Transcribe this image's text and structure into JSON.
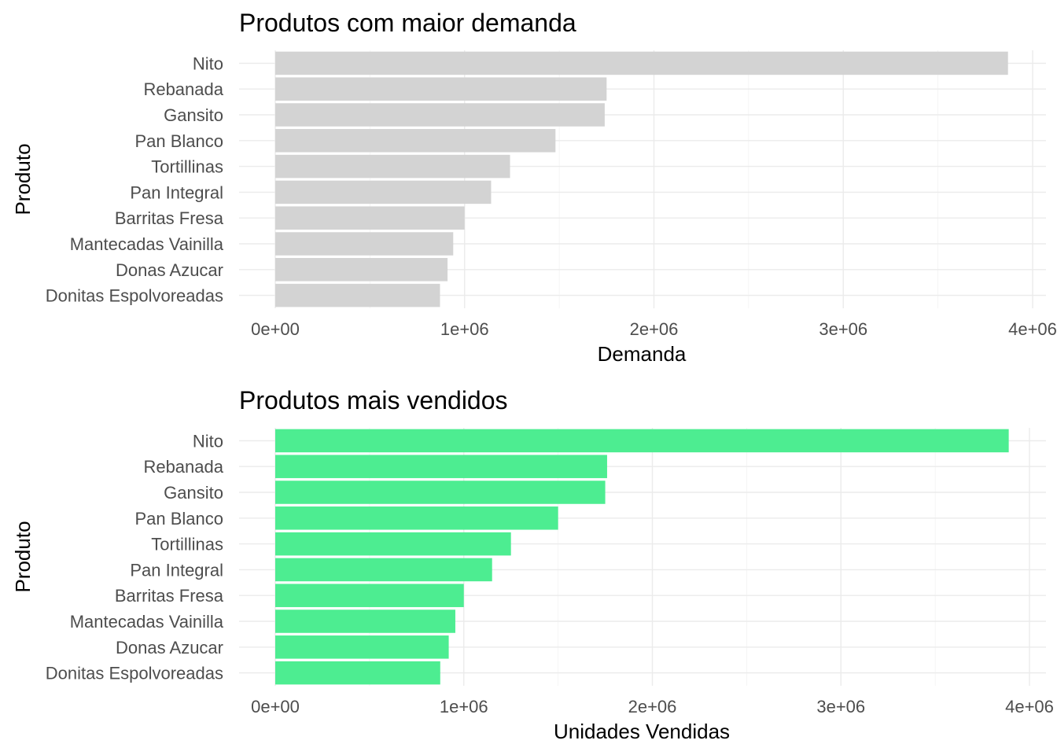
{
  "chart_data": [
    {
      "type": "bar",
      "orientation": "horizontal",
      "title": "Produtos com maior demanda",
      "xlabel": "Demanda",
      "ylabel": "Produto",
      "xlim": [
        0,
        4000000
      ],
      "x_ticks": [
        "0e+00",
        "1e+06",
        "2e+06",
        "3e+06",
        "4e+06"
      ],
      "x_tick_values": [
        0,
        1000000,
        2000000,
        3000000,
        4000000
      ],
      "grid": true,
      "bar_color": "#d3d3d3",
      "categories": [
        "Nito",
        "Rebanada",
        "Gansito",
        "Pan Blanco",
        "Tortillinas",
        "Pan Integral",
        "Barritas Fresa",
        "Mantecadas Vainilla",
        "Donas Azucar",
        "Donitas Espolvoreadas"
      ],
      "values": [
        3870000,
        1750000,
        1740000,
        1480000,
        1240000,
        1140000,
        1000000,
        940000,
        910000,
        870000
      ]
    },
    {
      "type": "bar",
      "orientation": "horizontal",
      "title": "Produtos mais vendidos",
      "xlabel": "Unidades Vendidas",
      "ylabel": "Produto",
      "xlim": [
        0,
        4000000
      ],
      "x_ticks": [
        "0e+00",
        "1e+06",
        "2e+06",
        "3e+06",
        "4e+06"
      ],
      "x_tick_values": [
        0,
        1000000,
        2000000,
        3000000,
        4000000
      ],
      "grid": true,
      "bar_color": "#4ded91",
      "categories": [
        "Nito",
        "Rebanada",
        "Gansito",
        "Pan Blanco",
        "Tortillinas",
        "Pan Integral",
        "Barritas Fresa",
        "Mantecadas Vainilla",
        "Donas Azucar",
        "Donitas Espolvoreadas"
      ],
      "values": [
        3890000,
        1760000,
        1750000,
        1500000,
        1250000,
        1150000,
        1000000,
        955000,
        920000,
        875000
      ]
    }
  ]
}
